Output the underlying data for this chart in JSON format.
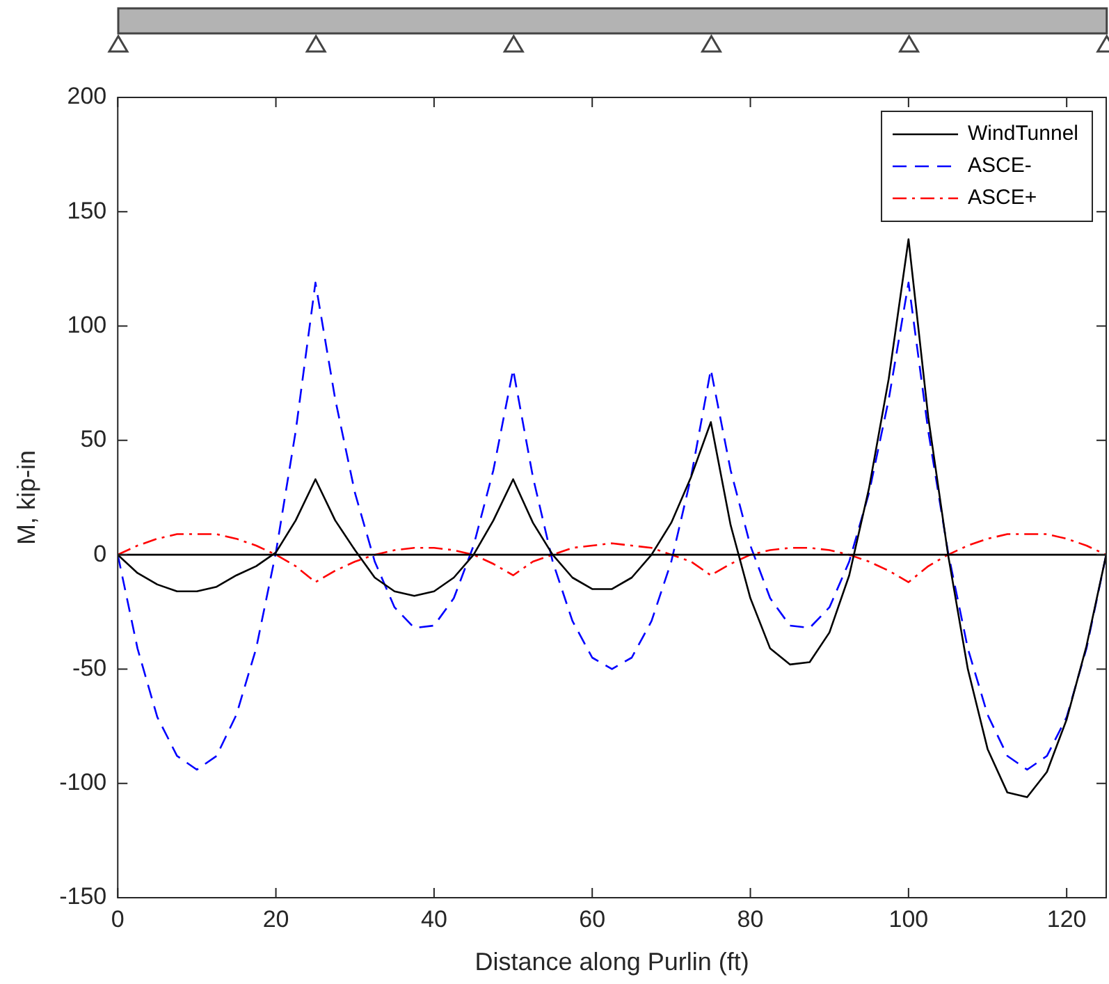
{
  "chart_data": {
    "type": "line",
    "xlabel": "Distance along Purlin (ft)",
    "ylabel": "M, kip-in",
    "x": [
      0,
      2.5,
      5,
      7.5,
      10,
      12.5,
      15,
      17.5,
      20,
      22.5,
      25,
      27.5,
      30,
      32.5,
      35,
      37.5,
      40,
      42.5,
      45,
      47.5,
      50,
      52.5,
      55,
      57.5,
      60,
      62.5,
      65,
      67.5,
      70,
      72.5,
      75,
      77.5,
      80,
      82.5,
      85,
      87.5,
      90,
      92.5,
      95,
      97.5,
      100,
      102.5,
      105,
      107.5,
      110,
      112.5,
      115,
      117.5,
      120,
      122.5,
      125
    ],
    "series": [
      {
        "name": "WindTunnel",
        "color": "#000000",
        "line_style": "solid",
        "values": [
          0,
          -8,
          -13,
          -16,
          -16,
          -14,
          -9,
          -5,
          1,
          15,
          33,
          15,
          2,
          -10,
          -16,
          -18,
          -16,
          -10,
          0,
          15,
          33,
          14,
          0,
          -10,
          -15,
          -15,
          -10,
          0,
          14,
          34,
          58,
          13,
          -19,
          -41,
          -48,
          -47,
          -34,
          -9,
          29,
          77,
          138,
          60,
          0,
          -50,
          -85,
          -104,
          -106,
          -95,
          -72,
          -40,
          0
        ]
      },
      {
        "name": "ASCE-",
        "color": "#0000ff",
        "line_style": "dashed",
        "values": [
          0,
          -41,
          -71,
          -88,
          -94,
          -88,
          -70,
          -41,
          1,
          54,
          119,
          68,
          27,
          -3,
          -23,
          -32,
          -31,
          -19,
          4,
          37,
          81,
          34,
          -3,
          -29,
          -45,
          -50,
          -45,
          -29,
          -3,
          34,
          81,
          37,
          4,
          -19,
          -31,
          -32,
          -23,
          -3,
          27,
          68,
          119,
          54,
          1,
          -41,
          -70,
          -88,
          -94,
          -88,
          -71,
          -41,
          0
        ]
      },
      {
        "name": "ASCE+",
        "color": "#ff0000",
        "line_style": "dashdot",
        "values": [
          0,
          4,
          7,
          9,
          9,
          9,
          7,
          4,
          0,
          -5,
          -12,
          -7,
          -3,
          0,
          2,
          3,
          3,
          2,
          0,
          -4,
          -9,
          -3,
          0,
          3,
          4,
          5,
          4,
          3,
          0,
          -3,
          -9,
          -4,
          0,
          2,
          3,
          3,
          2,
          0,
          -3,
          -7,
          -12,
          -5,
          0,
          4,
          7,
          9,
          9,
          9,
          7,
          4,
          0
        ]
      }
    ],
    "xlim": [
      0,
      125
    ],
    "xticks": [
      0,
      20,
      40,
      60,
      80,
      100,
      120
    ],
    "ylim": [
      -150,
      200
    ],
    "yticks": [
      -150,
      -100,
      -50,
      0,
      50,
      100,
      150,
      200
    ],
    "ref_lines": [
      {
        "axis": "y",
        "value": 0,
        "color": "#000000"
      }
    ],
    "grid": false,
    "legend": "top right",
    "marker": "none"
  }
}
